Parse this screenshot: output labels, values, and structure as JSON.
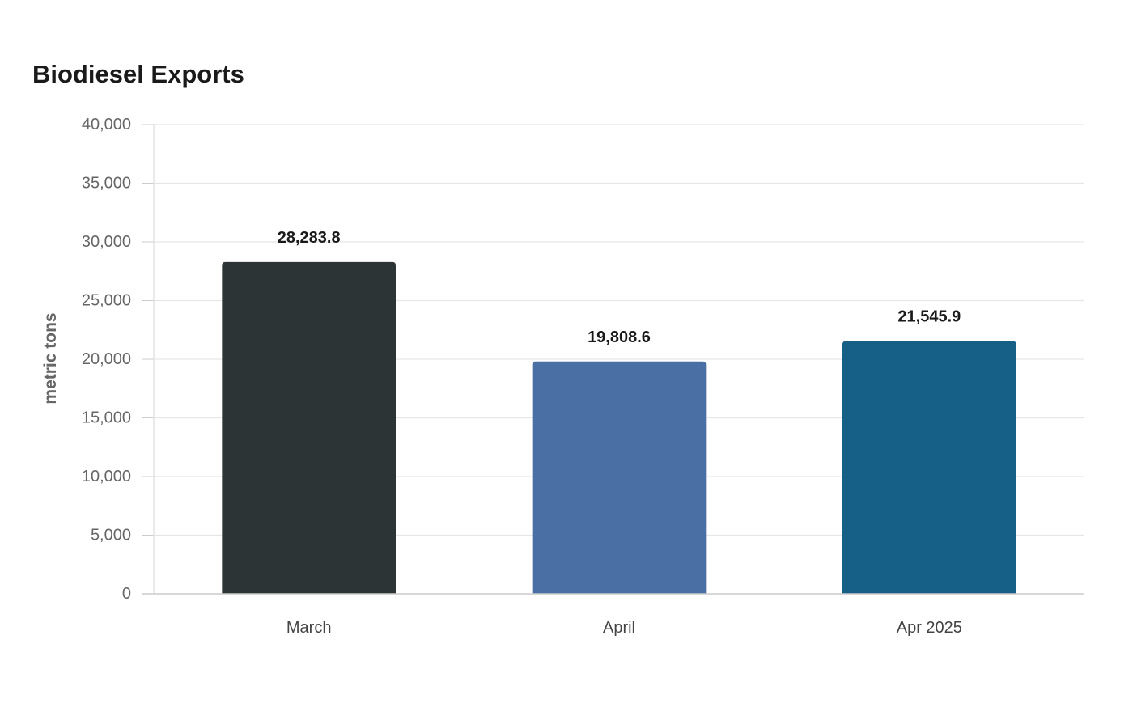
{
  "chart_data": {
    "type": "bar",
    "title": "Biodiesel Exports",
    "xlabel": "",
    "ylabel": "metric tons",
    "categories": [
      "March",
      "April",
      "Apr 2025"
    ],
    "values": [
      28283.8,
      19808.6,
      21545.9
    ],
    "value_labels": [
      "28,283.8",
      "19,808.6",
      "21,545.9"
    ],
    "bar_colors": [
      "#2d3436",
      "#4a6fa5",
      "#166088"
    ],
    "ylim": [
      0,
      40000
    ],
    "yticks": [
      0,
      5000,
      10000,
      15000,
      20000,
      25000,
      30000,
      35000,
      40000
    ],
    "ytick_labels": [
      "0",
      "5,000",
      "10,000",
      "15,000",
      "20,000",
      "25,000",
      "30,000",
      "35,000",
      "40,000"
    ],
    "grid": true,
    "legend": "none"
  }
}
